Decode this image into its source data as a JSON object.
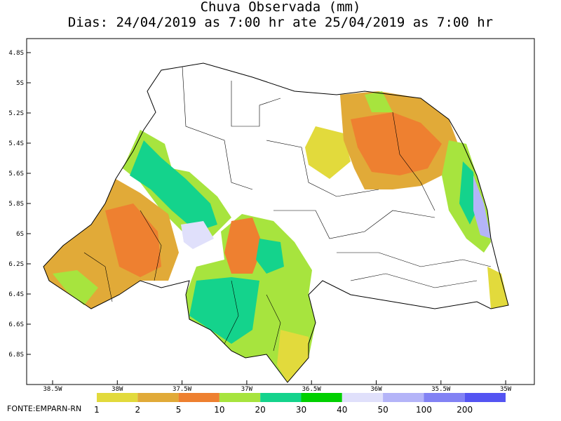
{
  "header": {
    "title": "Chuva Observada (mm)",
    "subtitle": "Dias: 24/04/2019 as 7:00 hr ate 25/04/2019 as 7:00 hr"
  },
  "axes": {
    "lat_ticks": [
      "4.8S",
      "5S",
      "5.2S",
      "5.4S",
      "5.6S",
      "5.8S",
      "6S",
      "6.2S",
      "6.4S",
      "6.6S",
      "6.8S"
    ],
    "lon_ticks": [
      "38.5W",
      "38W",
      "37.5W",
      "37W",
      "36.5W",
      "36W",
      "35.5W",
      "35W"
    ]
  },
  "legend": {
    "levels": [
      {
        "label": "1",
        "color": "#e2da3c"
      },
      {
        "label": "2",
        "color": "#e1aa38"
      },
      {
        "label": "5",
        "color": "#ee8030"
      },
      {
        "label": "10",
        "color": "#a7e43e"
      },
      {
        "label": "20",
        "color": "#14d38c"
      },
      {
        "label": "30",
        "color": "#00d000"
      },
      {
        "label": "40",
        "color": "#e0e0fb"
      },
      {
        "label": "50",
        "color": "#b4b4f8"
      },
      {
        "label": "100",
        "color": "#8282f4"
      },
      {
        "label": "200",
        "color": "#5454f2"
      }
    ]
  },
  "source": "FONTE:EMPARN-RN"
}
